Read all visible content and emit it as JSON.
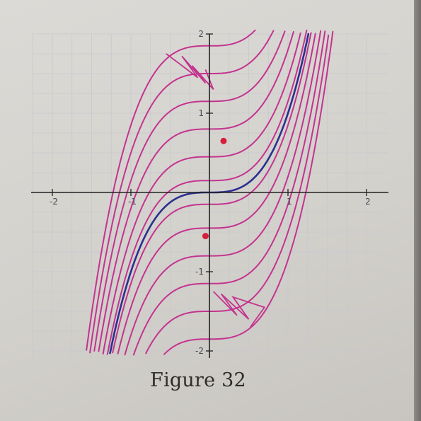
{
  "caption": "Figure 32",
  "chart_data": {
    "type": "line",
    "title": "",
    "xlabel": "",
    "ylabel": "",
    "xlim": [
      -2.2,
      2.25
    ],
    "ylim": [
      -2.0,
      2.0
    ],
    "grid": true,
    "x_ticks": [
      -2,
      -1,
      1,
      2
    ],
    "x_tick_labels": [
      "-2",
      "-1",
      "1",
      "2"
    ],
    "y_ticks": [
      2,
      1,
      -1,
      -2
    ],
    "y_tick_labels": [
      "2",
      "1",
      "-1",
      "-2"
    ],
    "colors": {
      "family": "#c4338f",
      "highlight": "#2b2f8f",
      "point": "#d61f3c",
      "axis": "#222222",
      "grid": "#c8c8cf"
    },
    "series": [
      {
        "offset": -1.85,
        "color": "#c4338f"
      },
      {
        "offset": -1.5,
        "color": "#c4338f"
      },
      {
        "offset": -1.15,
        "color": "#c4338f"
      },
      {
        "offset": -0.8,
        "color": "#c4338f"
      },
      {
        "offset": -0.45,
        "color": "#c4338f"
      },
      {
        "offset": -0.15,
        "color": "#c4338f"
      },
      {
        "offset": 0.0,
        "color": "#2b2f8f"
      },
      {
        "offset": 0.15,
        "color": "#c4338f"
      },
      {
        "offset": 0.45,
        "color": "#c4338f"
      },
      {
        "offset": 0.8,
        "color": "#c4338f"
      },
      {
        "offset": 1.15,
        "color": "#c4338f"
      },
      {
        "offset": 1.5,
        "color": "#c4338f"
      },
      {
        "offset": 1.85,
        "color": "#c4338f"
      }
    ],
    "points": [
      {
        "x": 0.18,
        "y": 0.65
      },
      {
        "x": -0.05,
        "y": -0.55
      }
    ],
    "zigzags": [
      {
        "x": [
          -0.55,
          -0.15,
          -0.35,
          -0.05,
          -0.22,
          0.05,
          -0.05
        ],
        "y": [
          1.75,
          1.45,
          1.72,
          1.38,
          1.6,
          1.3,
          1.55
        ]
      },
      {
        "x": [
          0.05,
          0.35,
          0.15,
          0.5,
          0.3,
          0.7,
          0.52
        ],
        "y": [
          -1.25,
          -1.55,
          -1.28,
          -1.6,
          -1.32,
          -1.45,
          -1.7
        ]
      }
    ]
  }
}
